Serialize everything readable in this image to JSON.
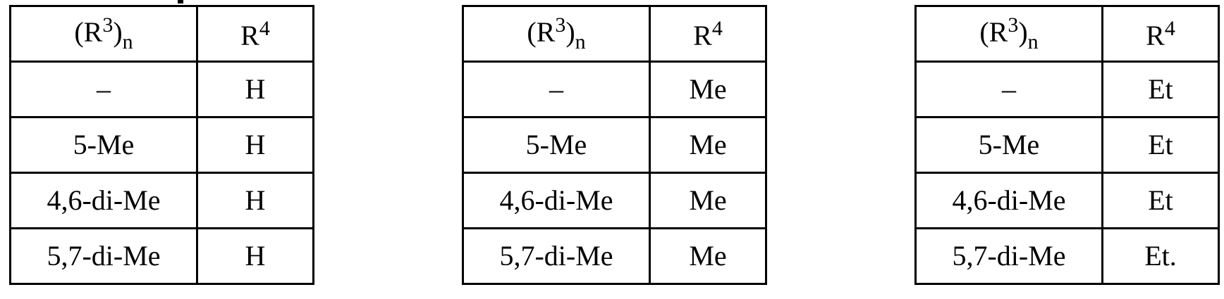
{
  "header": {
    "col1_base": "(R",
    "col1_sup": "3",
    "col1_close": ")",
    "col1_sub": "n",
    "col2_base": "R",
    "col2_sup": "4"
  },
  "tables": [
    {
      "rows": [
        [
          "–",
          "H"
        ],
        [
          "5-Me",
          "H"
        ],
        [
          "4,6-di-Me",
          "H"
        ],
        [
          "5,7-di-Me",
          "H"
        ]
      ]
    },
    {
      "rows": [
        [
          "–",
          "Me"
        ],
        [
          "5-Me",
          "Me"
        ],
        [
          "4,6-di-Me",
          "Me"
        ],
        [
          "5,7-di-Me",
          "Me"
        ]
      ]
    },
    {
      "rows": [
        [
          "–",
          "Et"
        ],
        [
          "5-Me",
          "Et"
        ],
        [
          "4,6-di-Me",
          "Et"
        ],
        [
          "5,7-di-Me",
          "Et."
        ]
      ]
    }
  ]
}
